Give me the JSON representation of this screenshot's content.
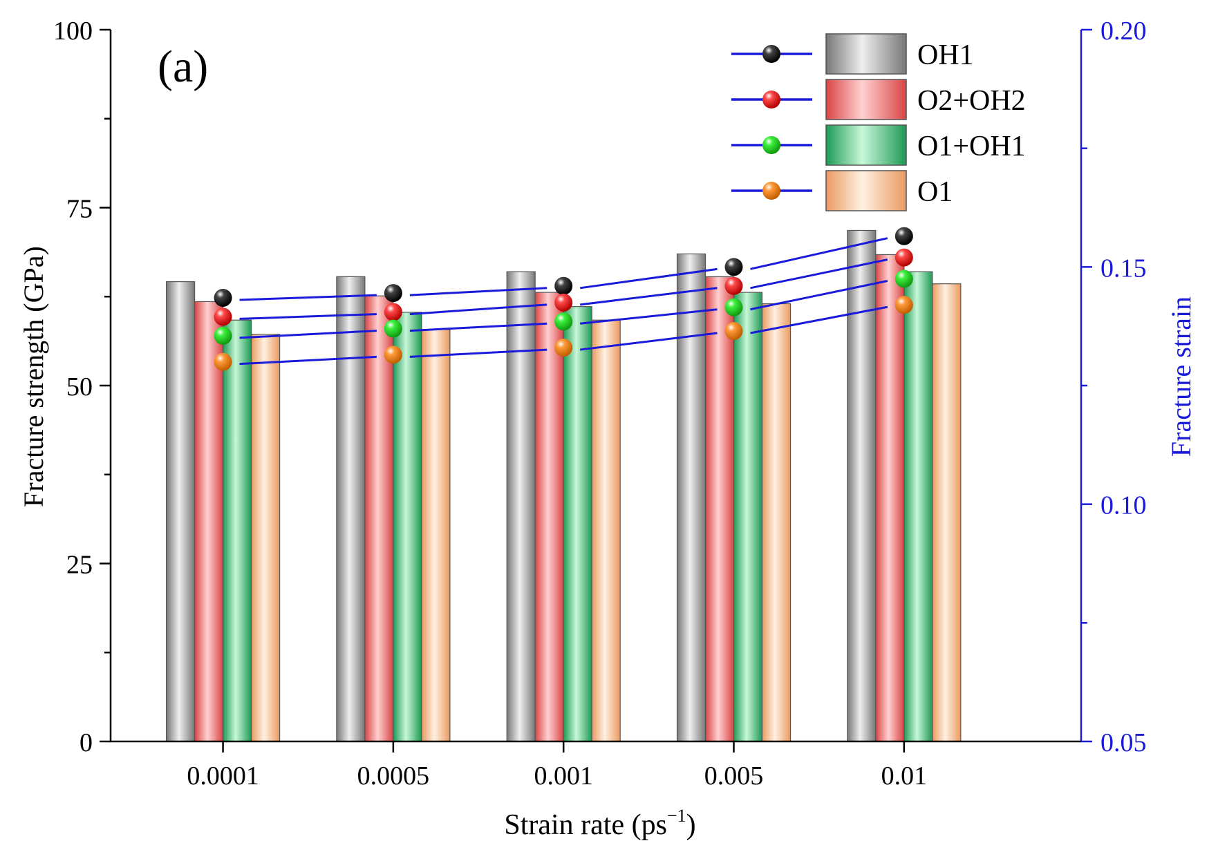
{
  "chart_data": {
    "type": "bar",
    "panel_label": "(a)",
    "categories": [
      "0.0001",
      "0.0005",
      "0.001",
      "0.005",
      "0.01"
    ],
    "xlabel": {
      "base": "Strain rate (ps",
      "sup": "−1",
      "close": ")"
    },
    "ylabel": "Fracture strength (GPa)",
    "y2label": "Fracture strain",
    "ylim": [
      0,
      100
    ],
    "yticks": [
      0,
      25,
      50,
      75,
      100
    ],
    "y2lim": [
      0.05,
      0.2
    ],
    "y2ticks": [
      "0.05",
      "0.10",
      "0.15",
      "0.20"
    ],
    "y2_color": "#1a1adb",
    "line_color": "#1a1adb",
    "legend_position": "top-right",
    "grid": false,
    "series": [
      {
        "name": "OH1",
        "bar_color": "#b4b4b4",
        "marker_color": "#111111",
        "strength": [
          64.6,
          65.3,
          66.0,
          68.5,
          71.8
        ],
        "strain": [
          0.1435,
          0.1445,
          0.146,
          0.15,
          0.1565
        ]
      },
      {
        "name": "O2+OH2",
        "bar_color": "#f78f8f",
        "marker_color": "#ee1c1c",
        "strength": [
          61.8,
          62.6,
          63.1,
          65.3,
          68.4
        ],
        "strain": [
          0.1395,
          0.1405,
          0.1425,
          0.146,
          0.152
        ]
      },
      {
        "name": "O1+OH1",
        "bar_color": "#63cf90",
        "marker_color": "#22e022",
        "strength": [
          59.2,
          60.3,
          61.1,
          63.1,
          66.0
        ],
        "strain": [
          0.1355,
          0.137,
          0.1385,
          0.1415,
          0.1475
        ]
      },
      {
        "name": "O1",
        "bar_color": "#f9c29b",
        "marker_color": "#f28c22",
        "strength": [
          57.2,
          57.9,
          59.2,
          61.5,
          64.3
        ],
        "strain": [
          0.13,
          0.1315,
          0.133,
          0.1365,
          0.142
        ]
      }
    ]
  }
}
